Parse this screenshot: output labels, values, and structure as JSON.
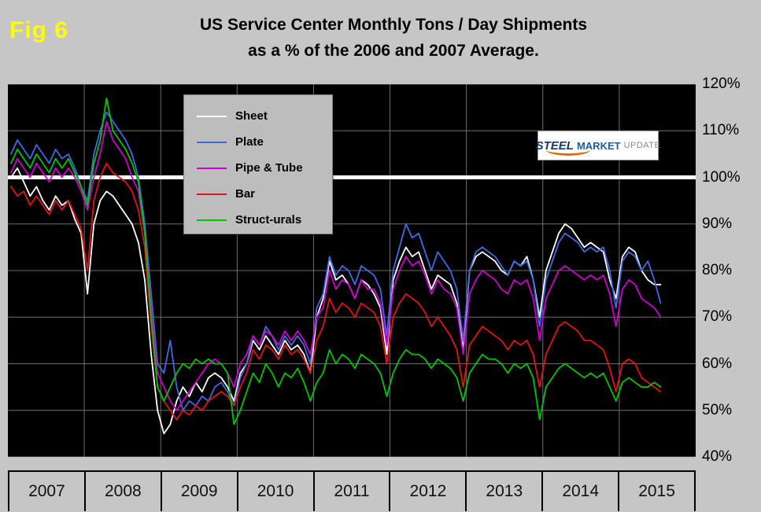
{
  "figure": {
    "fig_label": "Fig 6",
    "title_line1": "US Service Center Monthly Tons / Day Shipments",
    "title_line2": "as a % of the 2006 and 2007 Average."
  },
  "logo": {
    "part1": "STEEL",
    "part2": "MARKET",
    "part3": "UPDATE"
  },
  "chart_data": {
    "type": "line",
    "title": "US Service Center Monthly Tons / Day Shipments as a % of the 2006 and 2007 Average.",
    "x_unit": "month",
    "x_start": "2007-01",
    "x_end": "2015-07",
    "year_labels": [
      "2007",
      "2008",
      "2009",
      "2010",
      "2011",
      "2012",
      "2013",
      "2014",
      "2015"
    ],
    "ylim": [
      40,
      120
    ],
    "y_ticks": [
      {
        "value": 120,
        "label": "120%"
      },
      {
        "value": 110,
        "label": "110%"
      },
      {
        "value": 100,
        "label": "100%"
      },
      {
        "value": 90,
        "label": "90%"
      },
      {
        "value": 80,
        "label": "80%"
      },
      {
        "value": 70,
        "label": "70%"
      },
      {
        "value": 60,
        "label": "60%"
      },
      {
        "value": 50,
        "label": "50%"
      },
      {
        "value": 40,
        "label": "40%"
      }
    ],
    "reference_line": {
      "value": 100,
      "color": "#ffffff"
    },
    "plot_bg": "#000000",
    "grid_color": "#6e6e6e",
    "legend_position": "upper-left-inside",
    "series": [
      {
        "name": "Sheet",
        "color": "#ffffff",
        "values": [
          100,
          102,
          99,
          96,
          98,
          95,
          93,
          96,
          94,
          95,
          91,
          88,
          75,
          90,
          95,
          97,
          96,
          94,
          92,
          90,
          86,
          78,
          62,
          50,
          45,
          47,
          52,
          55,
          53,
          56,
          54,
          57,
          58,
          57,
          55,
          52,
          58,
          60,
          65,
          63,
          66,
          64,
          62,
          65,
          63,
          64,
          62,
          58,
          70,
          74,
          82,
          78,
          79,
          77,
          74,
          78,
          77,
          75,
          72,
          62,
          78,
          82,
          85,
          83,
          84,
          80,
          76,
          79,
          78,
          77,
          73,
          63,
          80,
          83,
          84,
          83,
          82,
          80,
          79,
          82,
          81,
          83,
          78,
          70,
          80,
          84,
          88,
          90,
          89,
          87,
          85,
          86,
          85,
          84,
          78,
          74,
          83,
          85,
          84,
          80,
          78,
          77,
          77
        ]
      },
      {
        "name": "Plate",
        "color": "#4169e1",
        "values": [
          105,
          108,
          106,
          104,
          107,
          105,
          103,
          106,
          104,
          105,
          102,
          98,
          95,
          105,
          110,
          114,
          112,
          110,
          108,
          105,
          100,
          90,
          75,
          60,
          58,
          65,
          55,
          50,
          52,
          51,
          53,
          52,
          55,
          56,
          54,
          51,
          57,
          60,
          66,
          64,
          68,
          66,
          63,
          66,
          64,
          66,
          64,
          60,
          72,
          75,
          83,
          79,
          81,
          80,
          77,
          81,
          80,
          79,
          76,
          66,
          80,
          85,
          90,
          87,
          88,
          84,
          80,
          84,
          82,
          80,
          76,
          65,
          80,
          84,
          85,
          84,
          83,
          81,
          79,
          82,
          81,
          82,
          78,
          68,
          78,
          82,
          86,
          88,
          87,
          86,
          84,
          85,
          84,
          85,
          80,
          72,
          82,
          84,
          83,
          80,
          82,
          78,
          73
        ]
      },
      {
        "name": "Pipe & Tube",
        "color": "#cc00cc",
        "values": [
          101,
          104,
          102,
          100,
          103,
          101,
          99,
          102,
          100,
          102,
          100,
          97,
          93,
          100,
          105,
          112,
          108,
          106,
          104,
          100,
          97,
          88,
          72,
          58,
          55,
          52,
          50,
          52,
          54,
          56,
          58,
          60,
          61,
          60,
          58,
          55,
          60,
          62,
          66,
          64,
          67,
          66,
          64,
          67,
          65,
          67,
          65,
          62,
          70,
          72,
          80,
          76,
          78,
          77,
          74,
          78,
          76,
          76,
          73,
          64,
          76,
          80,
          83,
          81,
          82,
          79,
          75,
          78,
          76,
          75,
          72,
          62,
          75,
          78,
          80,
          79,
          78,
          76,
          75,
          78,
          77,
          78,
          74,
          65,
          74,
          77,
          80,
          81,
          80,
          79,
          78,
          79,
          78,
          79,
          75,
          68,
          76,
          78,
          77,
          74,
          73,
          72,
          70
        ]
      },
      {
        "name": "Bar",
        "color": "#e01515",
        "values": [
          98,
          96,
          97,
          94,
          96,
          94,
          92,
          95,
          93,
          95,
          92,
          89,
          80,
          95,
          100,
          103,
          101,
          100,
          99,
          97,
          93,
          85,
          68,
          55,
          52,
          50,
          48,
          50,
          49,
          51,
          50,
          52,
          53,
          54,
          53,
          51,
          55,
          58,
          63,
          61,
          64,
          63,
          61,
          64,
          62,
          63,
          61,
          58,
          65,
          68,
          74,
          71,
          73,
          72,
          70,
          73,
          72,
          71,
          68,
          60,
          70,
          73,
          75,
          74,
          73,
          71,
          68,
          70,
          68,
          66,
          63,
          55,
          64,
          66,
          68,
          67,
          66,
          65,
          63,
          65,
          64,
          65,
          62,
          55,
          62,
          65,
          68,
          69,
          68,
          67,
          65,
          65,
          64,
          63,
          59,
          54,
          60,
          61,
          60,
          57,
          56,
          55,
          54
        ]
      },
      {
        "name": "Struct-urals",
        "color": "#00c400",
        "values": [
          103,
          106,
          104,
          102,
          105,
          103,
          101,
          104,
          102,
          104,
          101,
          98,
          94,
          103,
          108,
          117,
          110,
          108,
          106,
          103,
          99,
          88,
          70,
          55,
          52,
          55,
          58,
          60,
          59,
          61,
          60,
          61,
          60,
          60,
          58,
          47,
          50,
          54,
          58,
          56,
          60,
          58,
          55,
          58,
          57,
          59,
          56,
          52,
          56,
          58,
          63,
          60,
          62,
          61,
          59,
          62,
          61,
          60,
          58,
          53,
          58,
          61,
          63,
          62,
          62,
          61,
          59,
          61,
          60,
          59,
          57,
          52,
          58,
          60,
          62,
          61,
          61,
          60,
          58,
          60,
          59,
          60,
          57,
          48,
          55,
          57,
          59,
          60,
          59,
          58,
          57,
          58,
          57,
          58,
          55,
          52,
          56,
          57,
          56,
          55,
          55,
          56,
          55
        ]
      }
    ]
  }
}
